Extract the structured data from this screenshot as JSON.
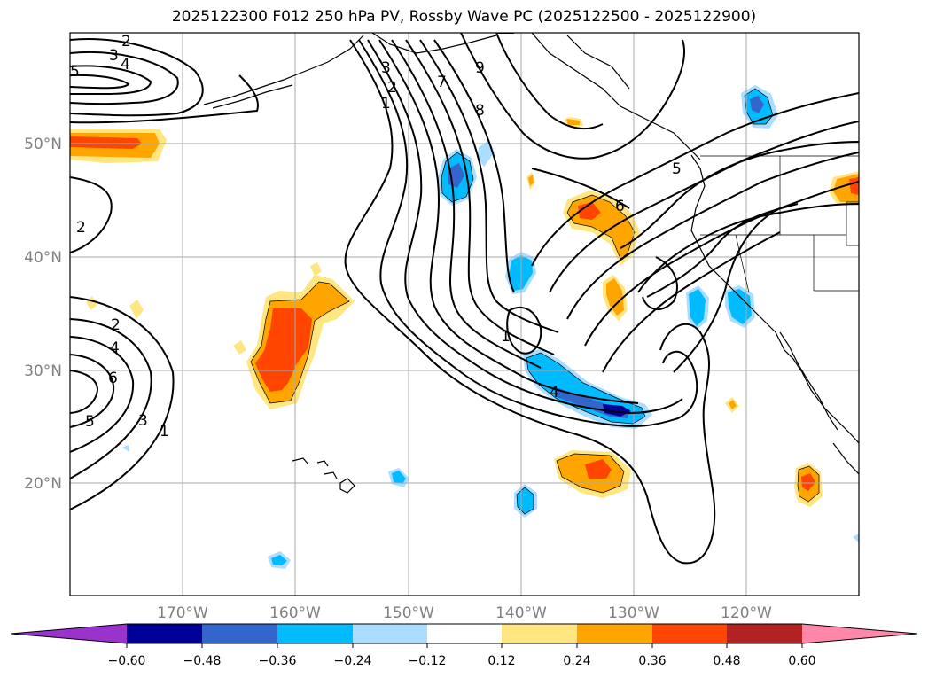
{
  "title": "2025122300 F012 250 hPa PV, Rossby Wave PC (2025122500 - 2025122900)",
  "map": {
    "lat_labels": [
      "50°N",
      "40°N",
      "30°N",
      "20°N"
    ],
    "lon_labels": [
      "170°W",
      "160°W",
      "150°W",
      "140°W",
      "130°W",
      "120°W"
    ],
    "contour_labels": [
      "2",
      "3",
      "4",
      "5",
      "2",
      "2",
      "4",
      "6",
      "5",
      "3",
      "1",
      "3",
      "2",
      "1",
      "7",
      "8",
      "9",
      "5",
      "6",
      "4",
      "1"
    ]
  },
  "colorbar": {
    "colors": [
      "#9933cc",
      "#000099",
      "#3366cc",
      "#00bbff",
      "#aaddff",
      "#ffffff",
      "#ffe680",
      "#ffa500",
      "#ff4500",
      "#b22222",
      "#ff88aa"
    ],
    "ticks": [
      "−0.60",
      "−0.48",
      "−0.36",
      "−0.24",
      "−0.12",
      "0.12",
      "0.24",
      "0.36",
      "0.48",
      "0.60"
    ]
  }
}
